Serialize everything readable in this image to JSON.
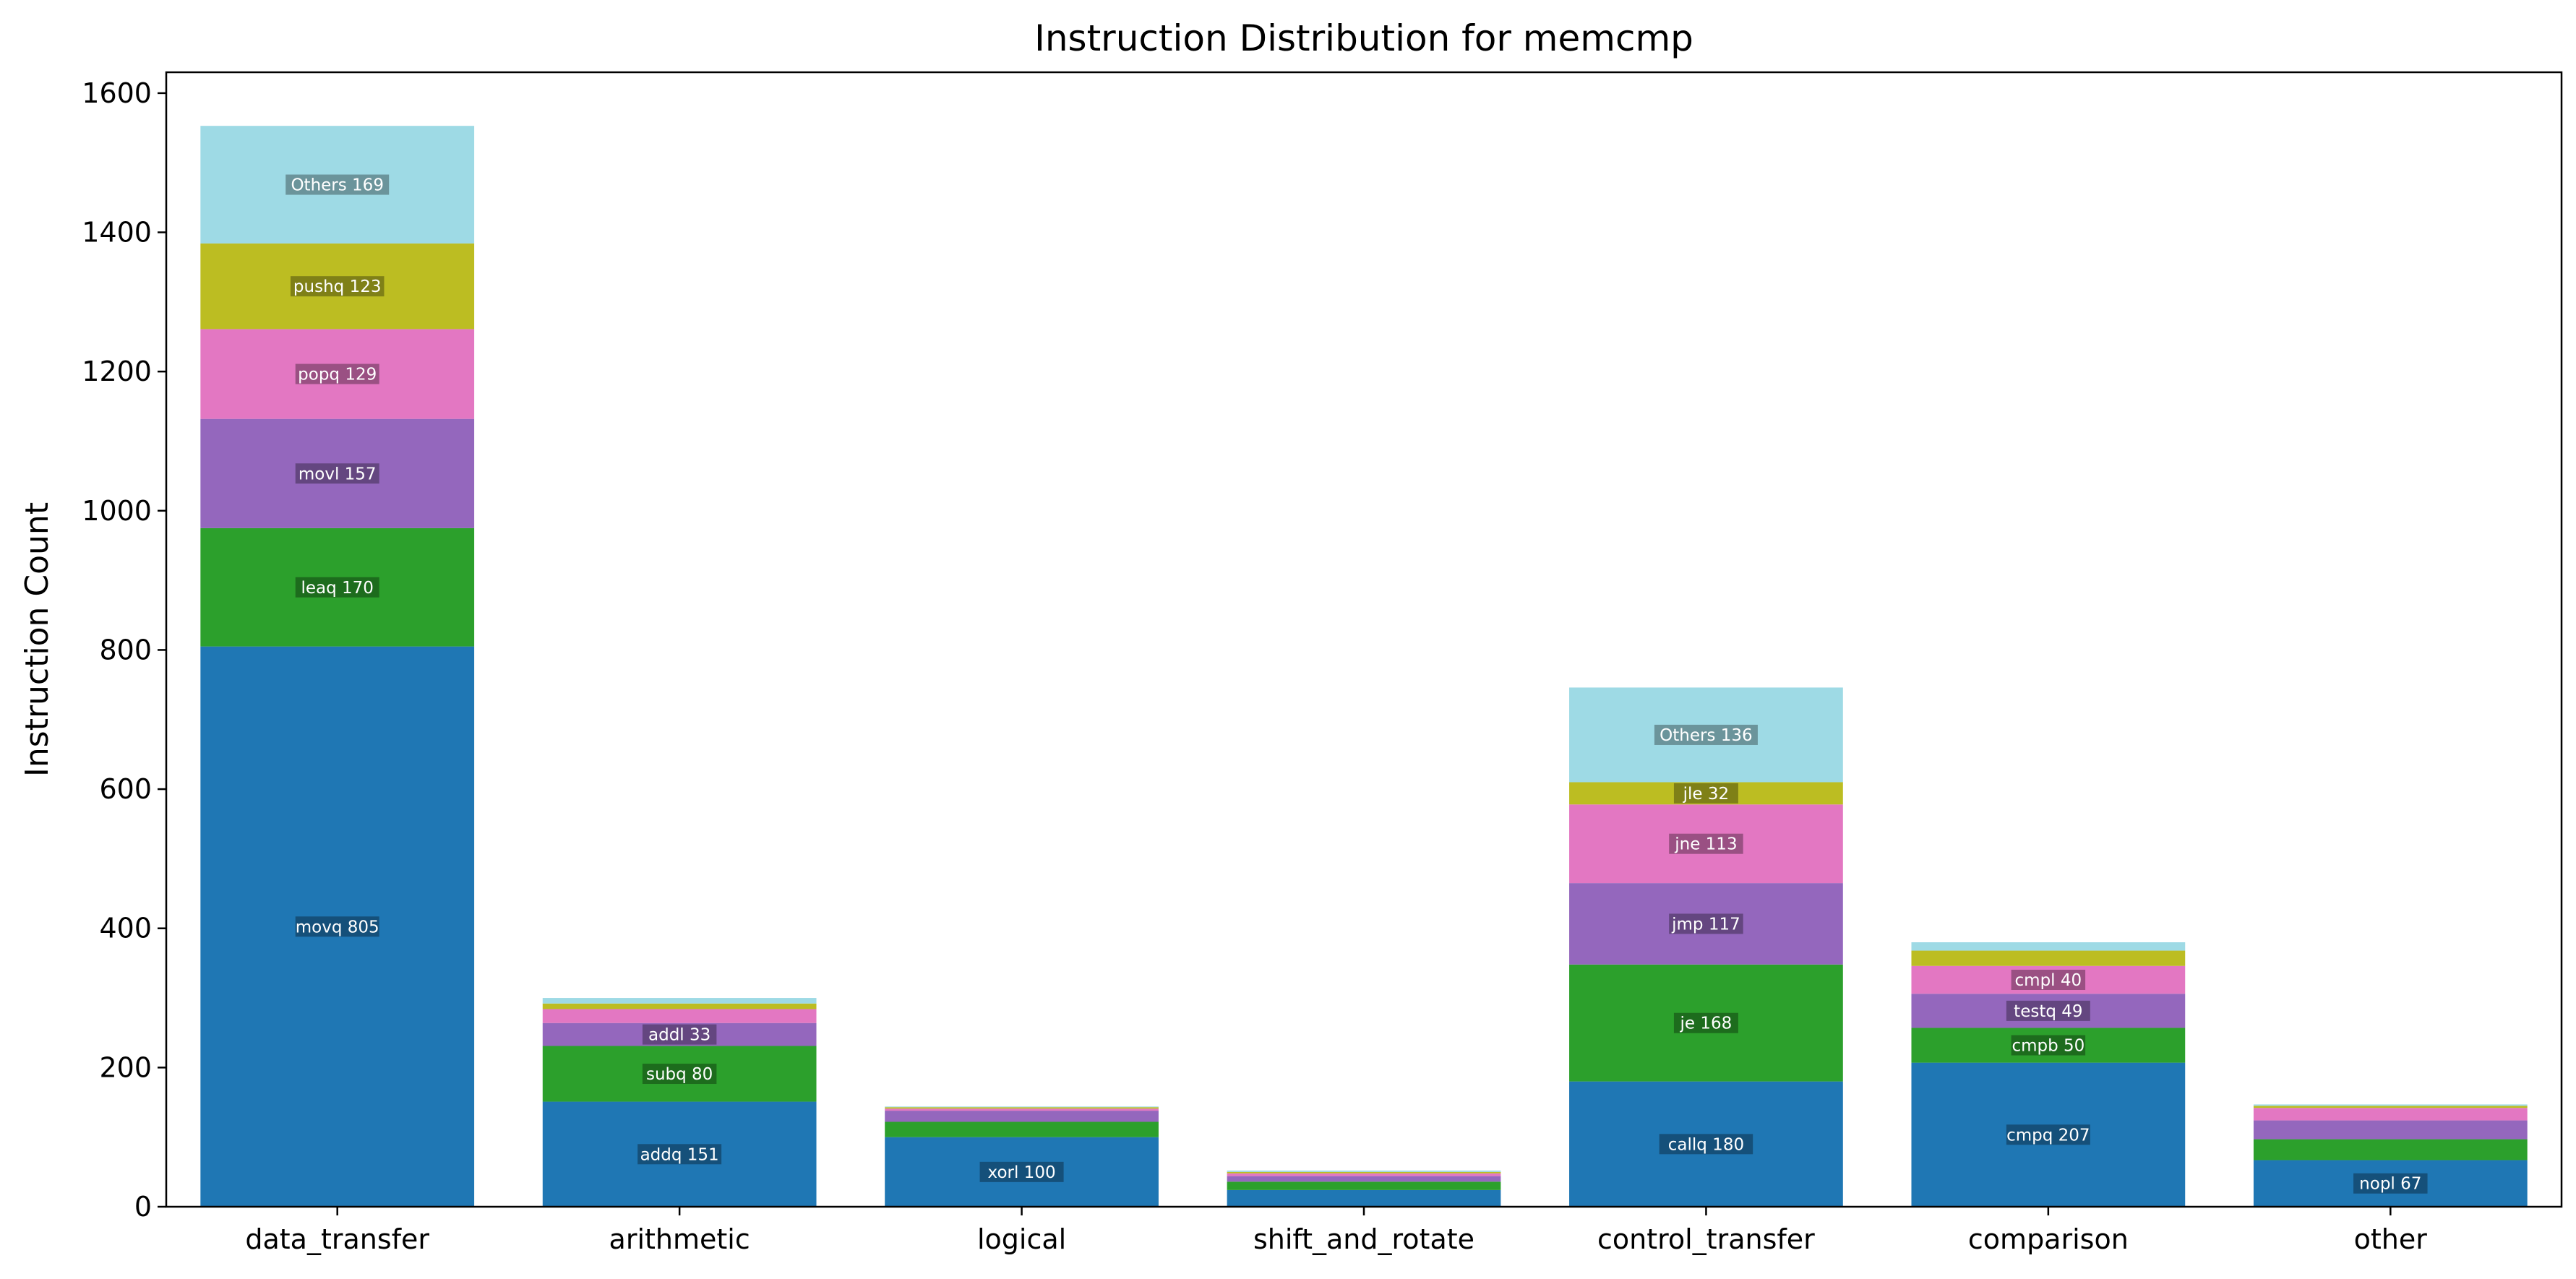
{
  "chart_data": {
    "type": "bar",
    "stacked": true,
    "title": "Instruction Distribution for memcmp",
    "xlabel": "",
    "ylabel": "Instruction Count",
    "ylim": [
      0,
      1630
    ],
    "yticks": [
      0,
      200,
      400,
      600,
      800,
      1000,
      1200,
      1400,
      1600
    ],
    "grid": false,
    "legend": "none",
    "colors": [
      "#1f77b4",
      "#2ca02c",
      "#9467bd",
      "#e377c2",
      "#bcbd22",
      "#9edae5"
    ],
    "categories": [
      "data_transfer",
      "arithmetic",
      "logical",
      "shift_and_rotate",
      "control_transfer",
      "comparison",
      "other"
    ],
    "stacks": [
      {
        "category": "data_transfer",
        "segments": [
          {
            "label": "movq 805",
            "value": 805
          },
          {
            "label": "leaq 170",
            "value": 170
          },
          {
            "label": "movl 157",
            "value": 157
          },
          {
            "label": "popq 129",
            "value": 129
          },
          {
            "label": "pushq 123",
            "value": 123
          },
          {
            "label": "Others 169",
            "value": 169
          }
        ]
      },
      {
        "category": "arithmetic",
        "segments": [
          {
            "label": "addq 151",
            "value": 151
          },
          {
            "label": "subq 80",
            "value": 80
          },
          {
            "label": "addl 33",
            "value": 33
          },
          {
            "label": "",
            "value": 20
          },
          {
            "label": "",
            "value": 8
          },
          {
            "label": "",
            "value": 8
          }
        ]
      },
      {
        "category": "logical",
        "segments": [
          {
            "label": "xorl 100",
            "value": 100
          },
          {
            "label": "",
            "value": 22
          },
          {
            "label": "",
            "value": 16
          },
          {
            "label": "",
            "value": 3
          },
          {
            "label": "",
            "value": 2
          },
          {
            "label": "",
            "value": 1
          }
        ]
      },
      {
        "category": "shift_and_rotate",
        "segments": [
          {
            "label": "",
            "value": 24
          },
          {
            "label": "",
            "value": 12
          },
          {
            "label": "",
            "value": 8
          },
          {
            "label": "",
            "value": 4
          },
          {
            "label": "",
            "value": 2
          },
          {
            "label": "",
            "value": 2
          }
        ]
      },
      {
        "category": "control_transfer",
        "segments": [
          {
            "label": "callq 180",
            "value": 180
          },
          {
            "label": "je 168",
            "value": 168
          },
          {
            "label": "jmp 117",
            "value": 117
          },
          {
            "label": "jne 113",
            "value": 113
          },
          {
            "label": "jle 32",
            "value": 32
          },
          {
            "label": "Others 136",
            "value": 136
          }
        ]
      },
      {
        "category": "comparison",
        "segments": [
          {
            "label": "cmpq 207",
            "value": 207
          },
          {
            "label": "cmpb 50",
            "value": 50
          },
          {
            "label": "testq 49",
            "value": 49
          },
          {
            "label": "cmpl 40",
            "value": 40
          },
          {
            "label": "",
            "value": 22
          },
          {
            "label": "",
            "value": 12
          }
        ]
      },
      {
        "category": "other",
        "segments": [
          {
            "label": "nopl 67",
            "value": 67
          },
          {
            "label": "",
            "value": 30
          },
          {
            "label": "",
            "value": 27
          },
          {
            "label": "",
            "value": 18
          },
          {
            "label": "",
            "value": 3
          },
          {
            "label": "",
            "value": 2
          }
        ]
      }
    ]
  }
}
